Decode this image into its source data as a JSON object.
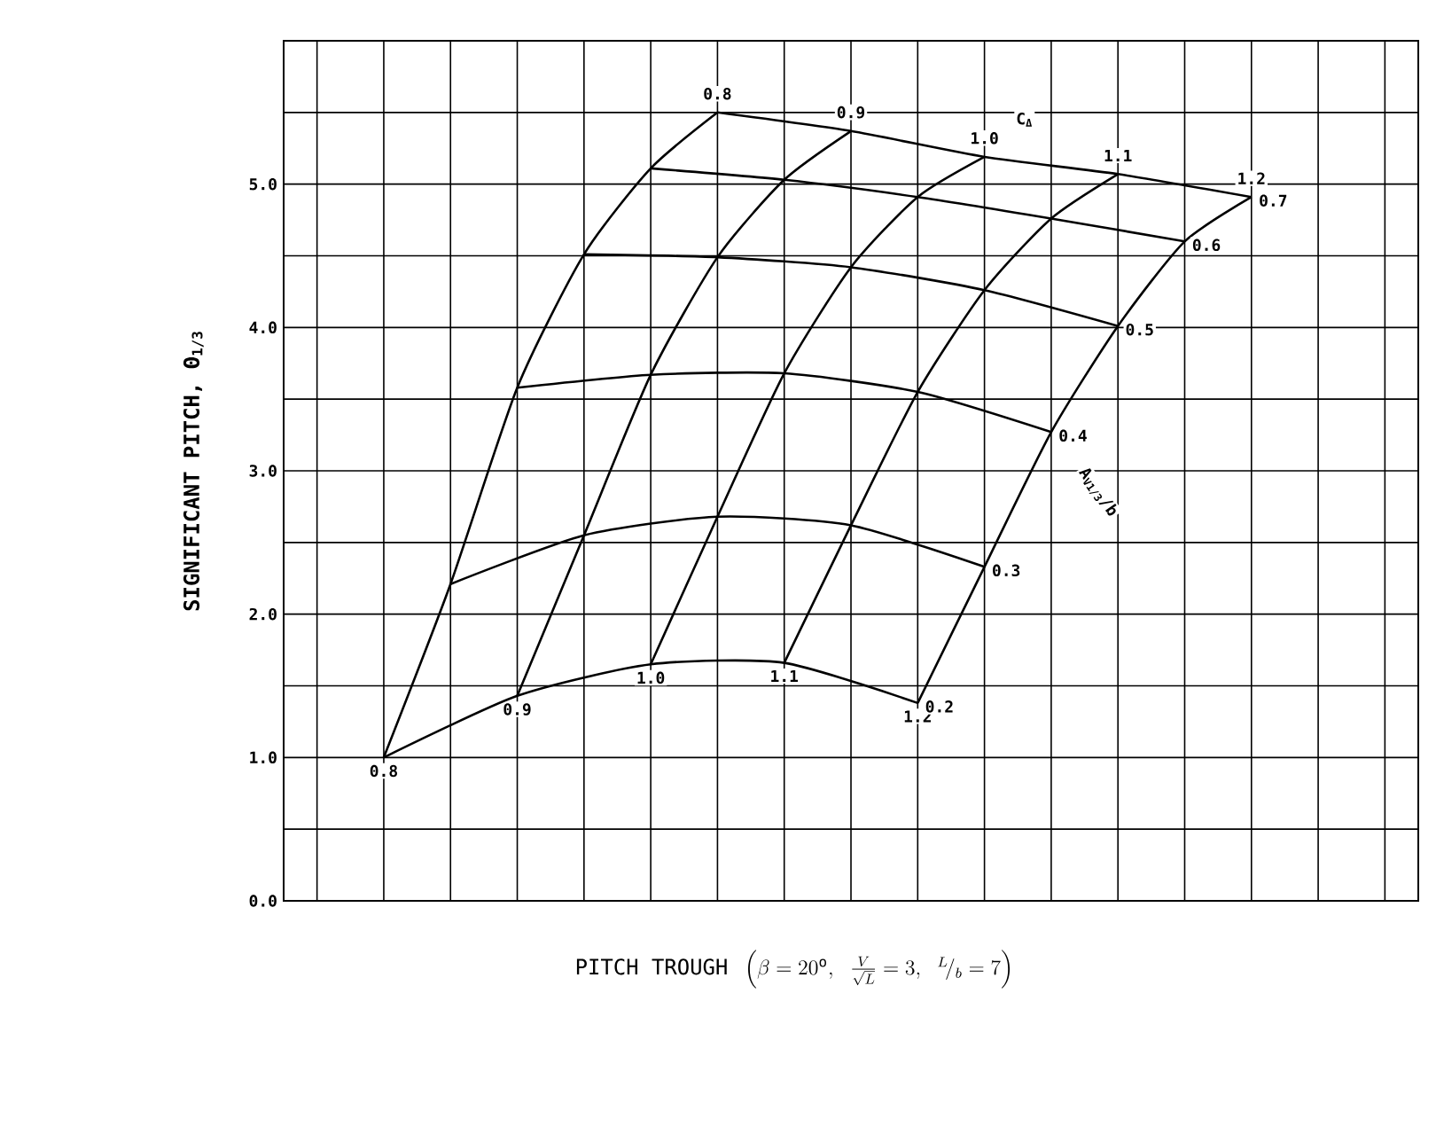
{
  "chart_data": {
    "type": "line",
    "xlabel": "\\mathrm{PITCH\\ TROUGH}\\ \\left(\\beta = 20^{\\mathrm{o}},\\ \\frac{V}{\\sqrt{L}} = 3,\\ {}^{L}\\!/_{b} = 7\\right)",
    "ylabel": "SIGNIFICANT PITCH, Θ$_{1/3}$",
    "annotations": [
      "C$_{Δ}$",
      "A$_{V1/3}$/b"
    ],
    "categories": [
      null,
      null,
      null,
      null,
      null,
      null,
      null,
      null,
      null,
      null,
      null,
      null,
      null,
      null,
      null,
      null,
      null
    ],
    "ylim": [
      0,
      6
    ],
    "yticks": [
      {
        "value": 0,
        "label": "0.0"
      },
      {
        "value": 0.5,
        "label": null
      },
      {
        "value": 1,
        "label": "1.0"
      },
      {
        "value": 1.5,
        "label": null
      },
      {
        "value": 2,
        "label": "2.0"
      },
      {
        "value": 2.5,
        "label": null
      },
      {
        "value": 3,
        "label": "3.0"
      },
      {
        "value": 3.5,
        "label": null
      },
      {
        "value": 4,
        "label": "4.0"
      },
      {
        "value": 4.5,
        "label": null
      },
      {
        "value": 5,
        "label": "5.0"
      },
      {
        "value": 5.5,
        "label": null
      },
      {
        "value": 6,
        "label": null
      }
    ],
    "grid": true,
    "series": [
      {
        "name": "0.8",
        "color": "#000000",
        "values": [
          null,
          1.0,
          2.21,
          3.58,
          4.51,
          5.11,
          5.5,
          null,
          null,
          null,
          null,
          null,
          null,
          null,
          null,
          null,
          null
        ]
      },
      {
        "name": "0.9",
        "color": "#000000",
        "values": [
          null,
          null,
          null,
          1.43,
          2.55,
          3.67,
          4.49,
          5.03,
          5.37,
          null,
          null,
          null,
          null,
          null,
          null,
          null,
          null
        ]
      },
      {
        "name": "1.0",
        "color": "#000000",
        "values": [
          null,
          null,
          null,
          null,
          null,
          1.65,
          2.68,
          3.68,
          4.42,
          4.91,
          5.19,
          null,
          null,
          null,
          null,
          null,
          null
        ]
      },
      {
        "name": "1.1",
        "color": "#000000",
        "values": [
          null,
          null,
          null,
          null,
          null,
          null,
          null,
          1.66,
          2.62,
          3.55,
          4.26,
          4.76,
          5.07,
          null,
          null,
          null,
          null
        ]
      },
      {
        "name": "1.2",
        "color": "#000000",
        "values": [
          null,
          null,
          null,
          null,
          null,
          null,
          null,
          null,
          null,
          1.38,
          2.33,
          3.27,
          4.01,
          4.6,
          4.91,
          null,
          null
        ]
      },
      {
        "name": "0.2",
        "color": "#000000",
        "values": [
          null,
          1.0,
          null,
          1.43,
          null,
          1.65,
          null,
          1.66,
          null,
          1.38,
          null,
          null,
          null,
          null,
          null,
          null,
          null
        ]
      },
      {
        "name": "0.3",
        "color": "#000000",
        "values": [
          null,
          null,
          2.21,
          null,
          2.55,
          null,
          2.68,
          null,
          2.62,
          null,
          2.33,
          null,
          null,
          null,
          null,
          null,
          null
        ]
      },
      {
        "name": "0.4",
        "color": "#000000",
        "values": [
          null,
          null,
          null,
          3.58,
          null,
          3.67,
          null,
          3.68,
          null,
          3.55,
          null,
          3.27,
          null,
          null,
          null,
          null,
          null
        ]
      },
      {
        "name": "0.5",
        "color": "#000000",
        "values": [
          null,
          null,
          null,
          null,
          4.51,
          null,
          4.49,
          null,
          4.42,
          null,
          4.26,
          null,
          4.01,
          null,
          null,
          null,
          null
        ]
      },
      {
        "name": "0.6",
        "color": "#000000",
        "values": [
          null,
          null,
          null,
          null,
          null,
          5.11,
          null,
          5.03,
          null,
          4.91,
          null,
          4.76,
          null,
          4.6,
          null,
          null,
          null
        ]
      },
      {
        "name": "0.7",
        "color": "#000000",
        "values": [
          null,
          null,
          null,
          null,
          null,
          null,
          5.5,
          null,
          5.37,
          null,
          5.19,
          null,
          5.07,
          null,
          4.91,
          null,
          null
        ]
      }
    ]
  }
}
